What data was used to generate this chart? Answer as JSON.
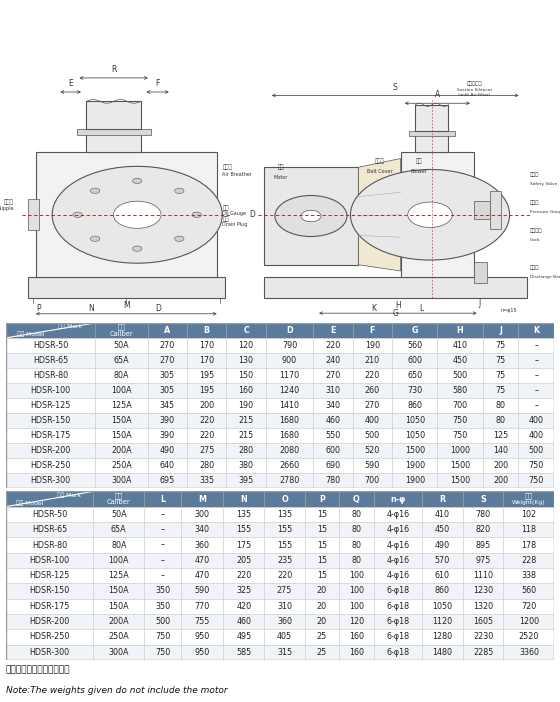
{
  "table1_header_row1": [
    "记号 Mark",
    "口径",
    "A",
    "B",
    "C",
    "D",
    "E",
    "F",
    "G",
    "H",
    "J",
    "K"
  ],
  "table1_header_row2": [
    "型式 Model",
    "Caliber",
    "",
    "",
    "",
    "",
    "",
    "",
    "",
    "",
    "",
    ""
  ],
  "table1_data": [
    [
      "HDSR-50",
      "50A",
      "270",
      "170",
      "120",
      "790",
      "220",
      "190",
      "560",
      "410",
      "75",
      "–"
    ],
    [
      "HDSR-65",
      "65A",
      "270",
      "170",
      "130",
      "900",
      "240",
      "210",
      "600",
      "450",
      "75",
      "–"
    ],
    [
      "HDSR-80",
      "80A",
      "305",
      "195",
      "150",
      "1170",
      "270",
      "220",
      "650",
      "500",
      "75",
      "–"
    ],
    [
      "HDSR-100",
      "100A",
      "305",
      "195",
      "160",
      "1240",
      "310",
      "260",
      "730",
      "580",
      "75",
      "–"
    ],
    [
      "HDSR-125",
      "125A",
      "345",
      "200",
      "190",
      "1410",
      "340",
      "270",
      "860",
      "700",
      "80",
      "–"
    ],
    [
      "HDSR-150",
      "150A",
      "390",
      "220",
      "215",
      "1680",
      "460",
      "400",
      "1050",
      "750",
      "80",
      "400"
    ],
    [
      "HDSR-175",
      "150A",
      "390",
      "220",
      "215",
      "1680",
      "550",
      "500",
      "1050",
      "750",
      "125",
      "400"
    ],
    [
      "HDSR-200",
      "200A",
      "490",
      "275",
      "280",
      "2080",
      "600",
      "520",
      "1500",
      "1000",
      "140",
      "500"
    ],
    [
      "HDSR-250",
      "250A",
      "640",
      "280",
      "380",
      "2660",
      "690",
      "590",
      "1900",
      "1500",
      "200",
      "750"
    ],
    [
      "HDSR-300",
      "300A",
      "695",
      "335",
      "395",
      "2780",
      "780",
      "700",
      "1900",
      "1500",
      "200",
      "750"
    ]
  ],
  "table2_header_row1": [
    "记号 Mark",
    "口径",
    "L",
    "M",
    "N",
    "O",
    "P",
    "Q",
    "n-φ",
    "R",
    "S",
    "重量"
  ],
  "table2_header_row2": [
    "型式 Model",
    "Caliber",
    "",
    "",
    "",
    "",
    "",
    "",
    "",
    "",
    "",
    "Weight(Kg)"
  ],
  "table2_data": [
    [
      "HDSR-50",
      "50A",
      "–",
      "300",
      "135",
      "135",
      "15",
      "80",
      "4-φ16",
      "410",
      "780",
      "102"
    ],
    [
      "HDSR-65",
      "65A",
      "–",
      "340",
      "155",
      "155",
      "15",
      "80",
      "4-φ16",
      "450",
      "820",
      "118"
    ],
    [
      "HDSR-80",
      "80A",
      "–",
      "360",
      "175",
      "155",
      "15",
      "80",
      "4-φ16",
      "490",
      "895",
      "178"
    ],
    [
      "HDSR-100",
      "100A",
      "–",
      "470",
      "205",
      "235",
      "15",
      "80",
      "4-φ16",
      "570",
      "975",
      "228"
    ],
    [
      "HDSR-125",
      "125A",
      "–",
      "470",
      "220",
      "220",
      "15",
      "100",
      "4-φ16",
      "610",
      "1110",
      "338"
    ],
    [
      "HDSR-150",
      "150A",
      "350",
      "590",
      "325",
      "275",
      "20",
      "100",
      "6-φ18",
      "860",
      "1230",
      "560"
    ],
    [
      "HDSR-175",
      "150A",
      "350",
      "770",
      "420",
      "310",
      "20",
      "100",
      "6-φ18",
      "1050",
      "1320",
      "720"
    ],
    [
      "HDSR-200",
      "200A",
      "500",
      "755",
      "460",
      "360",
      "20",
      "120",
      "6-φ18",
      "1120",
      "1605",
      "1200"
    ],
    [
      "HDSR-250",
      "250A",
      "750",
      "950",
      "495",
      "405",
      "25",
      "160",
      "6-φ18",
      "1280",
      "2230",
      "2520"
    ],
    [
      "HDSR-300",
      "300A",
      "750",
      "950",
      "585",
      "315",
      "25",
      "160",
      "6-φ18",
      "1480",
      "2285",
      "3360"
    ]
  ],
  "note_zh": "注：重量中不包括电机重量",
  "note_en": "Note:The weights given do not include the motor",
  "header_bg": "#5b7b9c",
  "header_fg": "#ffffff",
  "row_bg_odd": "#ffffff",
  "row_bg_even": "#f0f4f8",
  "border_color": "#999999",
  "grid_color": "#cccccc",
  "line_color": "#555555",
  "dim_color": "#333333",
  "red_dash": "#cc0000"
}
